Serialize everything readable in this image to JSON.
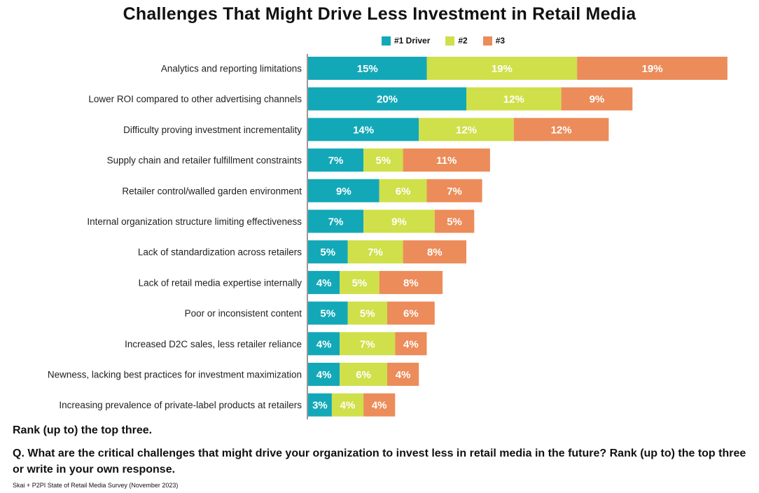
{
  "chart_data": {
    "type": "bar",
    "orientation": "horizontal",
    "stacked": true,
    "title": "Challenges That Might Drive Less Investment in Retail Media",
    "legend_position": "top",
    "categories": [
      "Analytics and reporting limitations",
      "Lower ROI compared to other advertising channels",
      "Difficulty proving investment incrementality",
      "Supply chain and retailer fulfillment constraints",
      "Retailer control/walled garden environment",
      "Internal organization structure limiting effectiveness",
      "Lack of standardization across retailers",
      "Lack of retail media expertise internally",
      "Poor or inconsistent content",
      "Increased D2C sales, less retailer reliance",
      "Newness, lacking best practices for investment maximization",
      "Increasing prevalence of private-label products at retailers"
    ],
    "series": [
      {
        "name": "#1 Driver",
        "color": "#13a8b8",
        "values": [
          15,
          20,
          14,
          7,
          9,
          7,
          5,
          4,
          5,
          4,
          4,
          3
        ]
      },
      {
        "name": "#2",
        "color": "#cfe04a",
        "values": [
          19,
          12,
          12,
          5,
          6,
          9,
          7,
          5,
          5,
          7,
          6,
          4
        ]
      },
      {
        "name": "#3",
        "color": "#ec8c5a",
        "values": [
          19,
          9,
          12,
          11,
          7,
          5,
          8,
          8,
          6,
          4,
          4,
          4
        ]
      }
    ],
    "value_suffix": "%"
  },
  "notes": {
    "rank": "Rank (up to) the top three.",
    "question": "Q. What are the critical challenges that might drive your organization to invest less in retail media in the future? Rank (up to) the top three or write in your own response.",
    "source": "Skai + P2PI State of Retail Media Survey (November 2023)"
  }
}
